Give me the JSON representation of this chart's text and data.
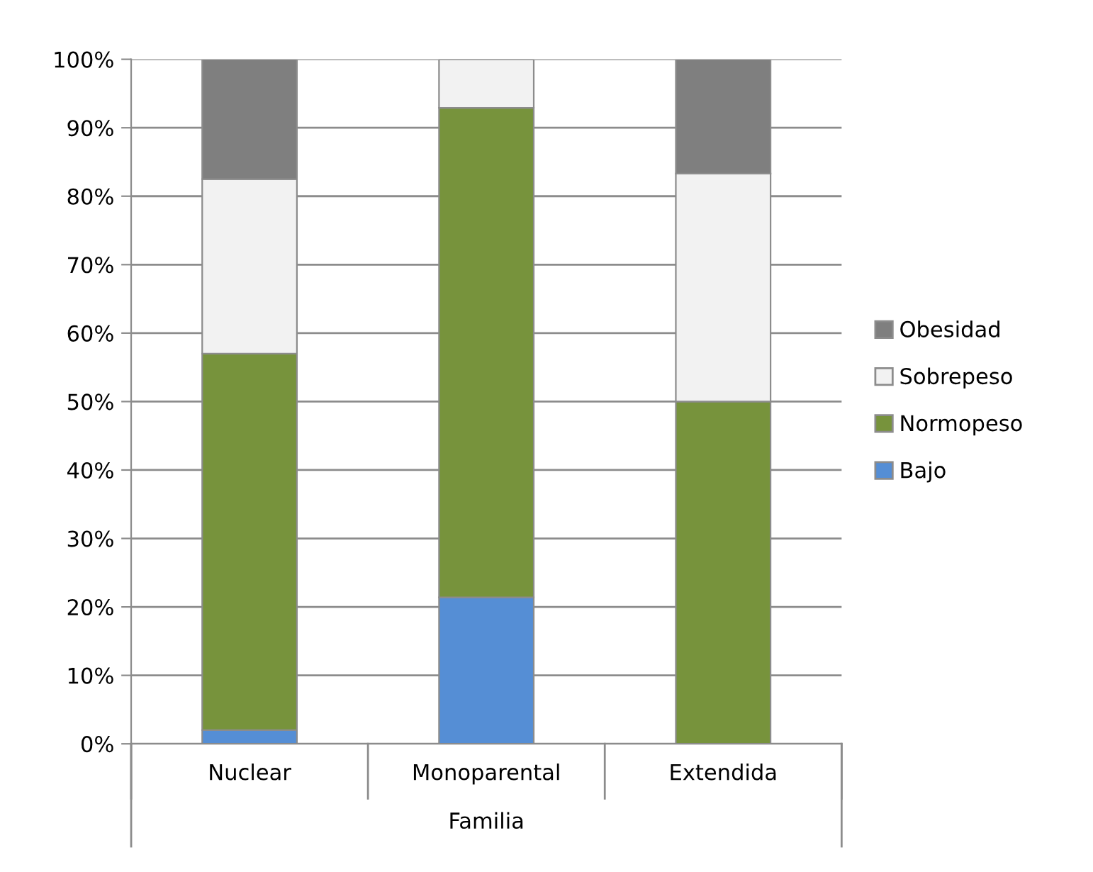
{
  "chart_data": {
    "type": "bar",
    "stacked": true,
    "xlabel": "Familia",
    "categories": [
      "Nuclear",
      "Monoparental",
      "Extendida"
    ],
    "series": [
      {
        "name": "Bajo",
        "color": "#558ed5",
        "values": [
          2,
          21.4,
          0
        ]
      },
      {
        "name": "Normopeso",
        "color": "#77933c",
        "values": [
          55,
          71.5,
          50
        ]
      },
      {
        "name": "Sobrepeso",
        "color": "#f2f2f2",
        "values": [
          25.5,
          7.1,
          33.3
        ]
      },
      {
        "name": "Obesidad",
        "color": "#7f7f7f",
        "values": [
          17.5,
          0,
          16.7
        ]
      }
    ],
    "ylim": [
      0,
      100
    ],
    "yticks": [
      {
        "value": 0,
        "label": "0%"
      },
      {
        "value": 10,
        "label": "10%"
      },
      {
        "value": 20,
        "label": "20%"
      },
      {
        "value": 30,
        "label": "30%"
      },
      {
        "value": 40,
        "label": "40%"
      },
      {
        "value": 50,
        "label": "50%"
      },
      {
        "value": 60,
        "label": "60%"
      },
      {
        "value": 70,
        "label": "70%"
      },
      {
        "value": 80,
        "label": "80%"
      },
      {
        "value": 90,
        "label": "90%"
      },
      {
        "value": 100,
        "label": "100%"
      }
    ],
    "grid": "y",
    "legend": "right"
  }
}
